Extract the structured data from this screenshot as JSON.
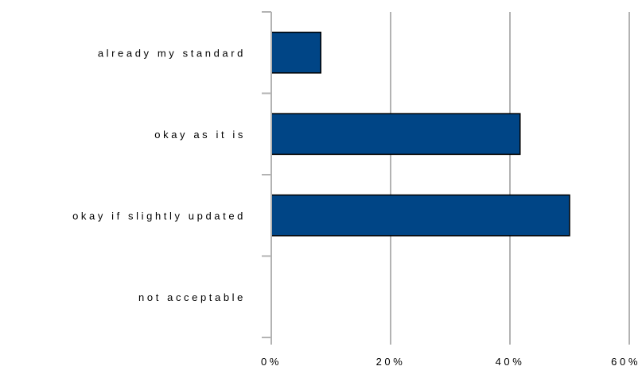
{
  "chart_data": {
    "type": "bar",
    "orientation": "horizontal",
    "categories": [
      "already my standard",
      "okay as it is",
      "okay if slightly updated",
      "not acceptable"
    ],
    "values": [
      8.3,
      41.7,
      50.0,
      0.0
    ],
    "value_unit": "%",
    "xlim": [
      0,
      60
    ],
    "x_ticks": [
      0,
      20,
      40,
      60
    ],
    "x_tick_labels": [
      "0%",
      "20%",
      "40%",
      "60%"
    ],
    "grid": "vertical",
    "legend": "none",
    "colors": {
      "bar": "#004586",
      "bar_stroke": "#000000",
      "grid": "#b3b3b3"
    }
  }
}
